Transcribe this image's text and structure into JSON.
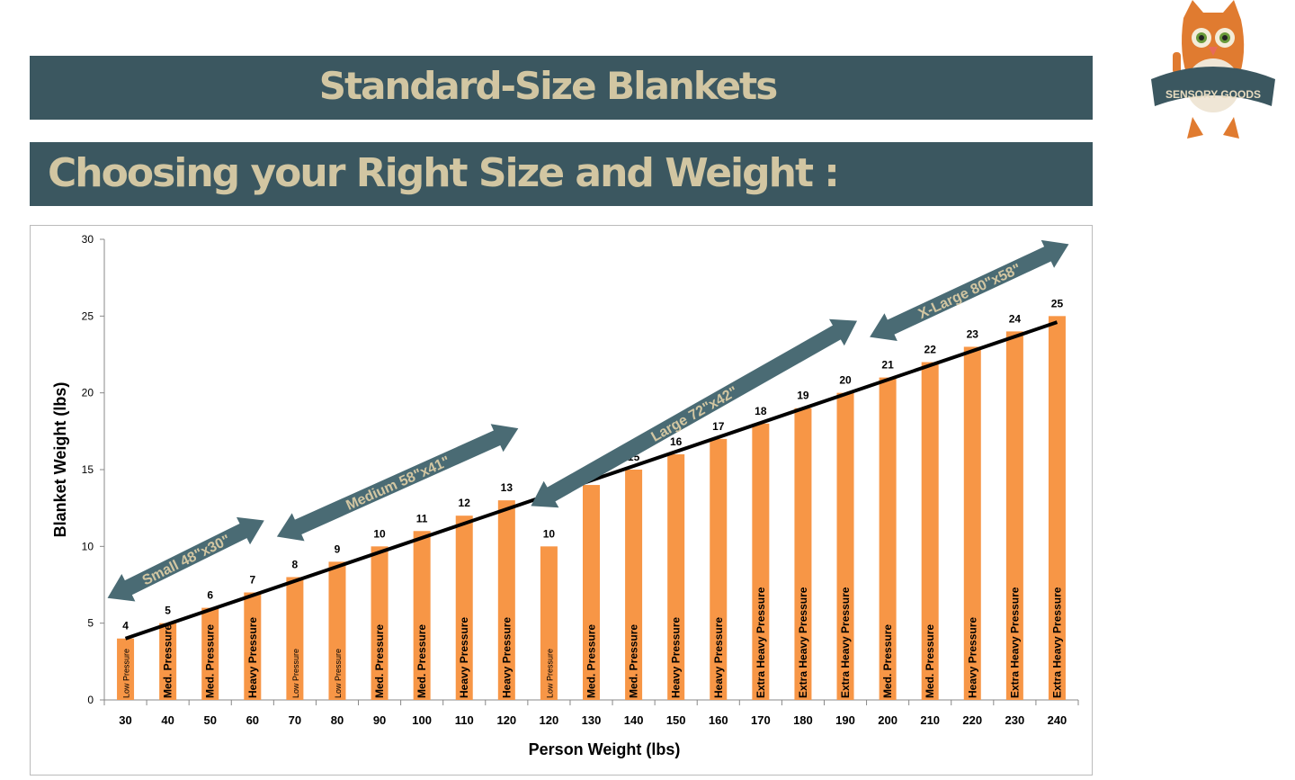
{
  "header": {
    "title": "Standard-Size Blankets",
    "subtitle": "Choosing your Right Size and Weight :"
  },
  "logo": {
    "text": "SENSORY GOODS",
    "icon": "owl-mascot-icon"
  },
  "colors": {
    "banner": "#3b5760",
    "banner_text": "#d2c6a2",
    "bar": "#f79646",
    "arrow": "#4a6b74",
    "trendline": "#000000"
  },
  "chart_data": {
    "type": "bar",
    "title": "",
    "xlabel": "Person Weight (lbs)",
    "ylabel": "Blanket Weight (lbs)",
    "ylim": [
      0,
      30
    ],
    "yticks": [
      0,
      5,
      10,
      15,
      20,
      25,
      30
    ],
    "grid": false,
    "categories": [
      "30",
      "40",
      "50",
      "60",
      "70",
      "80",
      "90",
      "100",
      "110",
      "120",
      "120",
      "130",
      "140",
      "150",
      "160",
      "170",
      "180",
      "190",
      "200",
      "210",
      "220",
      "230",
      "240"
    ],
    "values": [
      4,
      5,
      6,
      7,
      8,
      9,
      10,
      11,
      12,
      13,
      10,
      14,
      15,
      16,
      17,
      18,
      19,
      20,
      21,
      22,
      23,
      24,
      25
    ],
    "bar_labels": [
      "Low Pressure",
      "Med. Pressure",
      "Med. Pressure",
      "Heavy Pressure",
      "Low Pressure",
      "Low Pressure",
      "Med. Pressure",
      "Med. Pressure",
      "Heavy Pressure",
      "Heavy Pressure",
      "Low Pressure",
      "Med. Pressure",
      "Med. Pressure",
      "Heavy Pressure",
      "Heavy Pressure",
      "Extra Heavy Pressure",
      "Extra Heavy Pressure",
      "Extra Heavy Pressure",
      "Med. Pressure",
      "Med. Pressure",
      "Heavy Pressure",
      "Extra Heavy Pressure",
      "Extra Heavy Pressure"
    ],
    "trendline": {
      "start": 4,
      "end": 24.6
    },
    "annotations": [
      {
        "text": "Small 48\"x30\"",
        "from_category": 0,
        "to_category": 3
      },
      {
        "text": "Medium 58\"x41\"",
        "from_category": 4,
        "to_category": 9
      },
      {
        "text": "Large 72\"x42\"",
        "from_category": 10,
        "to_category": 17
      },
      {
        "text": "X-Large 80\"x58\"",
        "from_category": 18,
        "to_category": 22
      }
    ]
  }
}
